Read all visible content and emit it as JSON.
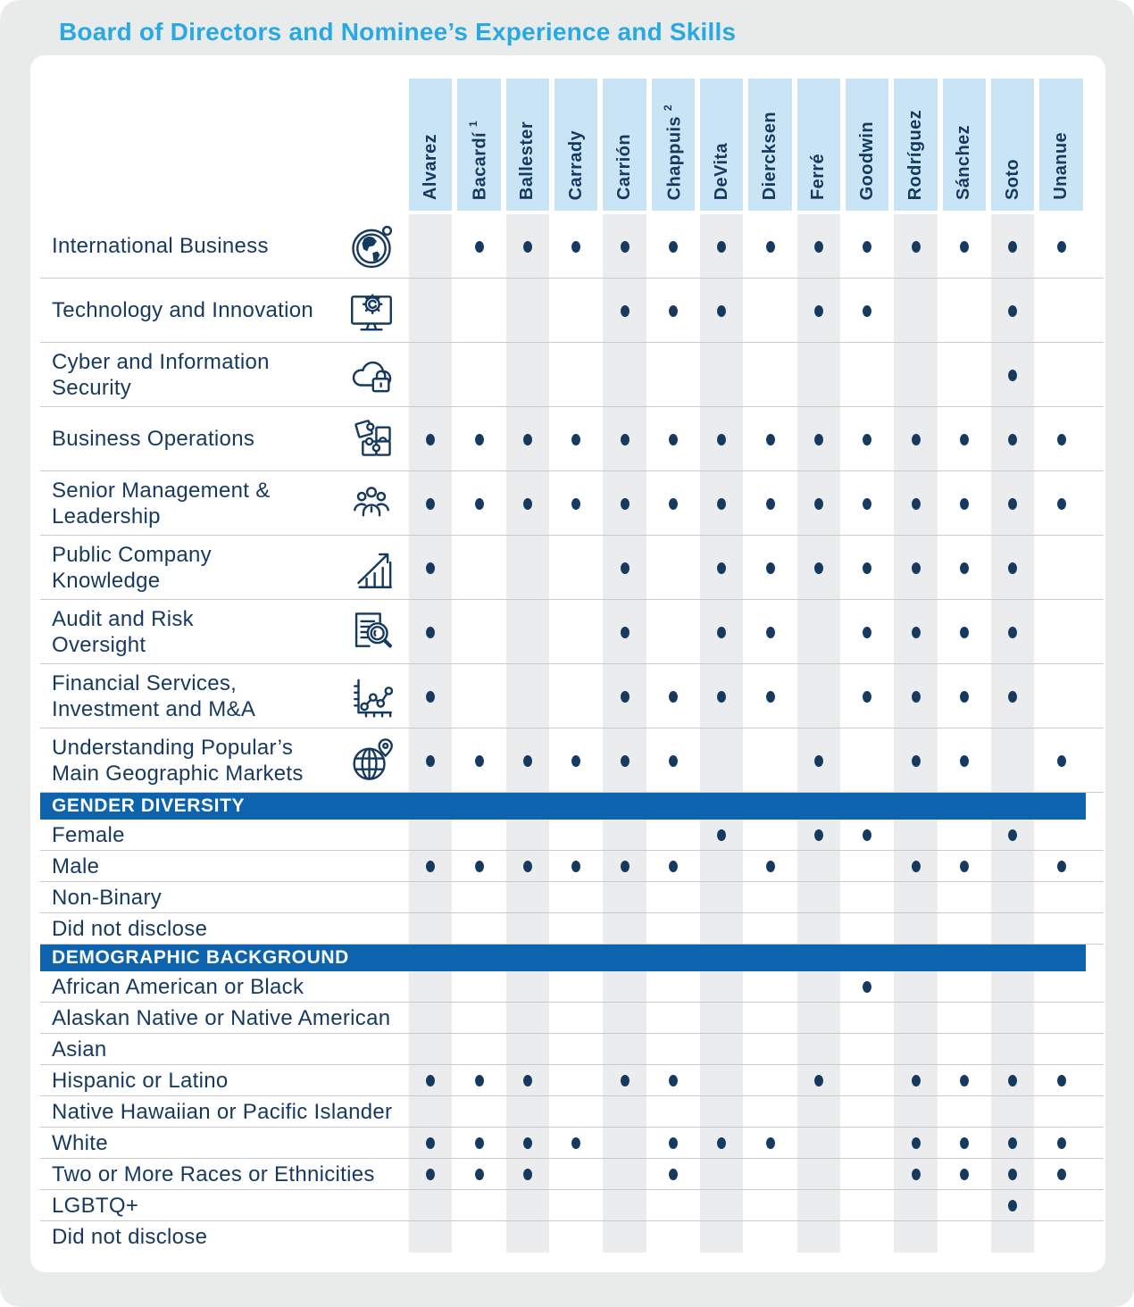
{
  "title": "Board of Directors and Nominee’s Experience and Skills",
  "colors": {
    "title_text": "#29a9e1",
    "navy_text_and_dots": "#16395f",
    "column_header_bg": "#c9e4f5",
    "section_bar_bg": "#0d63ae",
    "column_stripe_bg": "#ebeced",
    "row_divider": "#c9cbcb",
    "card_bg": "#ffffff",
    "page_bg": "#e9ebeb"
  },
  "columns": [
    {
      "label": "Alvarez",
      "sup": ""
    },
    {
      "label": "Bacardí",
      "sup": "1"
    },
    {
      "label": "Ballester",
      "sup": ""
    },
    {
      "label": "Carrady",
      "sup": ""
    },
    {
      "label": "Carrión",
      "sup": ""
    },
    {
      "label": "Chappuis",
      "sup": "2"
    },
    {
      "label": "DeVita",
      "sup": ""
    },
    {
      "label": "Diercksen",
      "sup": ""
    },
    {
      "label": "Ferré",
      "sup": ""
    },
    {
      "label": "Goodwin",
      "sup": ""
    },
    {
      "label": "Rodríguez",
      "sup": ""
    },
    {
      "label": "Sánchez",
      "sup": ""
    },
    {
      "label": "Soto",
      "sup": ""
    },
    {
      "label": "Unanue",
      "sup": ""
    }
  ],
  "sections": [
    {
      "id": "skills",
      "header": null,
      "rows": [
        {
          "label": "International Business",
          "icon": "globe-icon",
          "dots": [
            0,
            1,
            1,
            1,
            1,
            1,
            1,
            1,
            1,
            1,
            1,
            1,
            1,
            1
          ]
        },
        {
          "label": "Technology and Innovation",
          "icon": "monitor-gear-icon",
          "dots": [
            0,
            0,
            0,
            0,
            1,
            1,
            1,
            0,
            1,
            1,
            0,
            0,
            1,
            0
          ]
        },
        {
          "label": "Cyber and Information\nSecurity",
          "icon": "cloud-lock-icon",
          "dots": [
            0,
            0,
            0,
            0,
            0,
            0,
            0,
            0,
            0,
            0,
            0,
            0,
            1,
            0
          ]
        },
        {
          "label": "Business Operations",
          "icon": "puzzle-icon",
          "dots": [
            1,
            1,
            1,
            1,
            1,
            1,
            1,
            1,
            1,
            1,
            1,
            1,
            1,
            1
          ]
        },
        {
          "label": "Senior Management &\nLeadership",
          "icon": "people-icon",
          "dots": [
            1,
            1,
            1,
            1,
            1,
            1,
            1,
            1,
            1,
            1,
            1,
            1,
            1,
            1
          ]
        },
        {
          "label": "Public Company\nKnowledge",
          "icon": "growth-chart-icon",
          "dots": [
            1,
            0,
            0,
            0,
            1,
            0,
            1,
            1,
            1,
            1,
            1,
            1,
            1,
            0
          ]
        },
        {
          "label": "Audit and Risk\nOversight",
          "icon": "document-magnifier-icon",
          "dots": [
            1,
            0,
            0,
            0,
            1,
            0,
            1,
            1,
            0,
            1,
            1,
            1,
            1,
            0
          ]
        },
        {
          "label": "Financial Services,\nInvestment and M&A",
          "icon": "line-chart-icon",
          "dots": [
            1,
            0,
            0,
            0,
            1,
            1,
            1,
            1,
            0,
            1,
            1,
            1,
            1,
            0
          ]
        },
        {
          "label": "Understanding Popular’s\nMain Geographic Markets",
          "icon": "globe-pin-icon",
          "dots": [
            1,
            1,
            1,
            1,
            1,
            1,
            0,
            0,
            1,
            0,
            1,
            1,
            0,
            1
          ]
        }
      ]
    },
    {
      "id": "gender",
      "header": "GENDER DIVERSITY",
      "rows": [
        {
          "label": "Female",
          "icon": null,
          "dots": [
            0,
            0,
            0,
            0,
            0,
            0,
            1,
            0,
            1,
            1,
            0,
            0,
            1,
            0
          ]
        },
        {
          "label": "Male",
          "icon": null,
          "dots": [
            1,
            1,
            1,
            1,
            1,
            1,
            0,
            1,
            0,
            0,
            1,
            1,
            0,
            1
          ]
        },
        {
          "label": "Non-Binary",
          "icon": null,
          "dots": [
            0,
            0,
            0,
            0,
            0,
            0,
            0,
            0,
            0,
            0,
            0,
            0,
            0,
            0
          ]
        },
        {
          "label": "Did not disclose",
          "icon": null,
          "dots": [
            0,
            0,
            0,
            0,
            0,
            0,
            0,
            0,
            0,
            0,
            0,
            0,
            0,
            0
          ]
        }
      ]
    },
    {
      "id": "demographics",
      "header": "DEMOGRAPHIC BACKGROUND",
      "rows": [
        {
          "label": "African American or Black",
          "icon": null,
          "dots": [
            0,
            0,
            0,
            0,
            0,
            0,
            0,
            0,
            0,
            1,
            0,
            0,
            0,
            0
          ]
        },
        {
          "label": "Alaskan Native or Native American",
          "icon": null,
          "dots": [
            0,
            0,
            0,
            0,
            0,
            0,
            0,
            0,
            0,
            0,
            0,
            0,
            0,
            0
          ]
        },
        {
          "label": "Asian",
          "icon": null,
          "dots": [
            0,
            0,
            0,
            0,
            0,
            0,
            0,
            0,
            0,
            0,
            0,
            0,
            0,
            0
          ]
        },
        {
          "label": "Hispanic or Latino",
          "icon": null,
          "dots": [
            1,
            1,
            1,
            0,
            1,
            1,
            0,
            0,
            1,
            0,
            1,
            1,
            1,
            1
          ]
        },
        {
          "label": "Native Hawaiian or Pacific Islander",
          "icon": null,
          "dots": [
            0,
            0,
            0,
            0,
            0,
            0,
            0,
            0,
            0,
            0,
            0,
            0,
            0,
            0
          ]
        },
        {
          "label": "White",
          "icon": null,
          "dots": [
            1,
            1,
            1,
            1,
            0,
            1,
            1,
            1,
            0,
            0,
            1,
            1,
            1,
            1
          ]
        },
        {
          "label": "Two or More Races or Ethnicities",
          "icon": null,
          "dots": [
            1,
            1,
            1,
            0,
            0,
            1,
            0,
            0,
            0,
            0,
            1,
            1,
            1,
            1
          ]
        },
        {
          "label": "LGBTQ+",
          "icon": null,
          "dots": [
            0,
            0,
            0,
            0,
            0,
            0,
            0,
            0,
            0,
            0,
            0,
            0,
            1,
            0
          ]
        },
        {
          "label": "Did not disclose",
          "icon": null,
          "dots": [
            0,
            0,
            0,
            0,
            0,
            0,
            0,
            0,
            0,
            0,
            0,
            0,
            0,
            0
          ]
        }
      ]
    }
  ]
}
